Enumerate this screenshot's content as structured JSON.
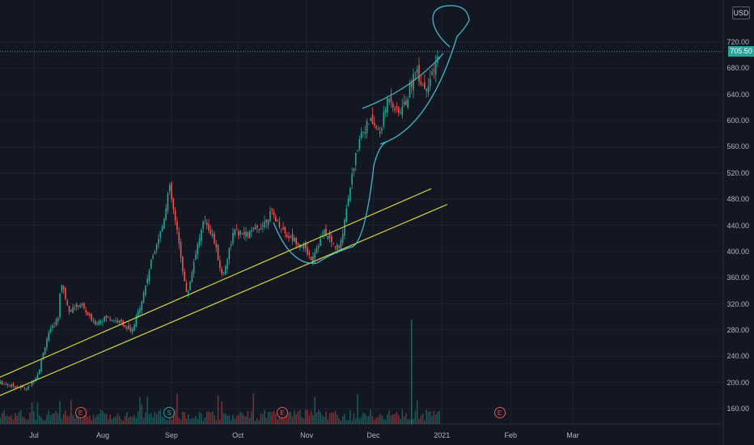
{
  "currency": "USD",
  "last_price": "705.50",
  "colors": {
    "background": "#131722",
    "grid": "#1f2331",
    "up": "#26a69a",
    "down": "#ef5350",
    "trendline": "#d4d43a",
    "drawing": "#3fb9c8"
  },
  "events": [
    {
      "label": "E",
      "kind": "earnings",
      "date": "2020-07-22"
    },
    {
      "label": "S",
      "kind": "split",
      "date": "2020-08-31"
    },
    {
      "label": "E",
      "kind": "earnings",
      "date": "2020-10-21"
    },
    {
      "label": "E",
      "kind": "earnings",
      "date": "2021-01-27"
    }
  ],
  "chart_data": {
    "type": "candlestick",
    "price_axis": {
      "min": 140,
      "max": 760,
      "ticks": [
        "160.00",
        "200.00",
        "240.00",
        "280.00",
        "320.00",
        "360.00",
        "400.00",
        "440.00",
        "480.00",
        "520.00",
        "560.00",
        "600.00",
        "640.00",
        "680.00",
        "720.00"
      ]
    },
    "time_axis": {
      "labels": [
        {
          "label": "Jul",
          "date": "2020-07-01"
        },
        {
          "label": "Aug",
          "date": "2020-08-01"
        },
        {
          "label": "Sep",
          "date": "2020-09-01"
        },
        {
          "label": "Oct",
          "date": "2020-10-01"
        },
        {
          "label": "Nov",
          "date": "2020-11-01"
        },
        {
          "label": "Dec",
          "date": "2020-12-01"
        },
        {
          "label": "2021",
          "date": "2021-01-01"
        },
        {
          "label": "Feb",
          "date": "2021-02-01"
        },
        {
          "label": "Mar",
          "date": "2021-03-01"
        }
      ]
    },
    "approx_price_path": [
      {
        "date": "2020-06-15",
        "price": 200
      },
      {
        "date": "2020-06-28",
        "price": 190
      },
      {
        "date": "2020-07-03",
        "price": 215
      },
      {
        "date": "2020-07-07",
        "price": 270
      },
      {
        "date": "2020-07-12",
        "price": 300
      },
      {
        "date": "2020-07-13",
        "price": 355
      },
      {
        "date": "2020-07-17",
        "price": 310
      },
      {
        "date": "2020-07-22",
        "price": 320
      },
      {
        "date": "2020-07-28",
        "price": 290
      },
      {
        "date": "2020-08-03",
        "price": 300
      },
      {
        "date": "2020-08-10",
        "price": 290
      },
      {
        "date": "2020-08-14",
        "price": 275
      },
      {
        "date": "2020-08-19",
        "price": 330
      },
      {
        "date": "2020-08-24",
        "price": 400
      },
      {
        "date": "2020-08-28",
        "price": 440
      },
      {
        "date": "2020-08-31",
        "price": 500
      },
      {
        "date": "2020-09-04",
        "price": 420
      },
      {
        "date": "2020-09-08",
        "price": 330
      },
      {
        "date": "2020-09-12",
        "price": 400
      },
      {
        "date": "2020-09-16",
        "price": 450
      },
      {
        "date": "2020-09-20",
        "price": 420
      },
      {
        "date": "2020-09-24",
        "price": 360
      },
      {
        "date": "2020-09-29",
        "price": 430
      },
      {
        "date": "2020-10-05",
        "price": 425
      },
      {
        "date": "2020-10-12",
        "price": 440
      },
      {
        "date": "2020-10-16",
        "price": 460
      },
      {
        "date": "2020-10-23",
        "price": 425
      },
      {
        "date": "2020-10-30",
        "price": 410
      },
      {
        "date": "2020-11-03",
        "price": 390
      },
      {
        "date": "2020-11-09",
        "price": 430
      },
      {
        "date": "2020-11-13",
        "price": 410
      },
      {
        "date": "2020-11-16",
        "price": 405
      },
      {
        "date": "2020-11-20",
        "price": 490
      },
      {
        "date": "2020-11-25",
        "price": 580
      },
      {
        "date": "2020-11-30",
        "price": 600
      },
      {
        "date": "2020-12-04",
        "price": 580
      },
      {
        "date": "2020-12-08",
        "price": 640
      },
      {
        "date": "2020-12-12",
        "price": 610
      },
      {
        "date": "2020-12-16",
        "price": 630
      },
      {
        "date": "2020-12-20",
        "price": 680
      },
      {
        "date": "2020-12-24",
        "price": 650
      },
      {
        "date": "2020-12-28",
        "price": 670
      },
      {
        "date": "2020-12-31",
        "price": 705.5
      }
    ]
  }
}
